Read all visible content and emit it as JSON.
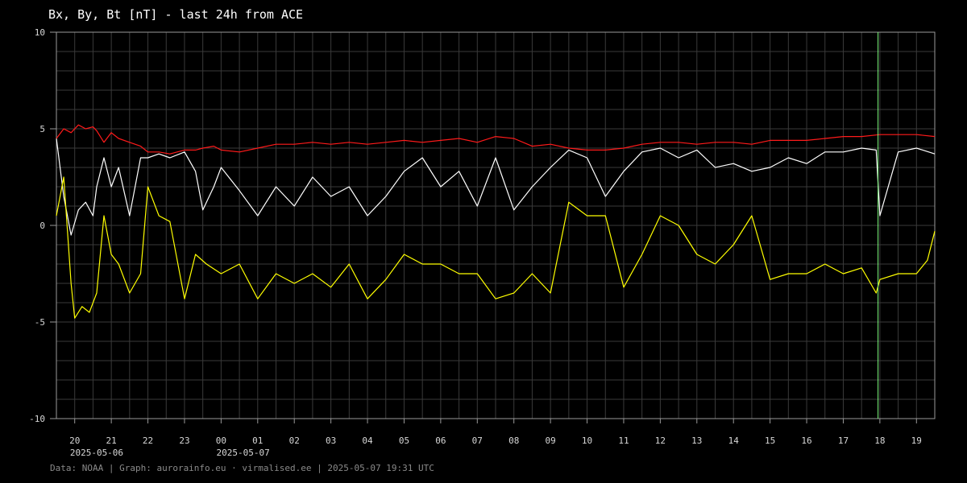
{
  "header": {
    "title": "Bx, By, Bt [nT] - last 24h from ACE"
  },
  "footer": {
    "credit": "Data: NOAA | Graph: aurorainfo.eu · virmalised.ee | 2025-05-07 19:31 UTC"
  },
  "colors": {
    "background": "#000000",
    "grid": "#3a3a3a",
    "axis": "#9a9a9a",
    "bt": "#ff1a1a",
    "bx": "#ffffff",
    "by": "#ffff00",
    "marker": "#80ff80"
  },
  "chart_data": {
    "type": "line",
    "title": "Bx, By, Bt [nT] - last 24h from ACE",
    "xlabel": "",
    "ylabel": "",
    "ylim": [
      -10,
      10
    ],
    "grid": true,
    "x_unit": "hours (UTC)",
    "xlim": [
      19.5,
      43.5
    ],
    "y_ticks": [
      {
        "value": 10,
        "label": "10"
      },
      {
        "value": 5,
        "label": "5"
      },
      {
        "value": 0,
        "label": "0"
      },
      {
        "value": -5,
        "label": "-5"
      },
      {
        "value": -10,
        "label": "-10"
      }
    ],
    "x_ticks": [
      {
        "hour": 20,
        "label": "20"
      },
      {
        "hour": 21,
        "label": "21"
      },
      {
        "hour": 22,
        "label": "22"
      },
      {
        "hour": 23,
        "label": "23"
      },
      {
        "hour": 24,
        "label": "00"
      },
      {
        "hour": 25,
        "label": "01"
      },
      {
        "hour": 26,
        "label": "02"
      },
      {
        "hour": 27,
        "label": "03"
      },
      {
        "hour": 28,
        "label": "04"
      },
      {
        "hour": 29,
        "label": "05"
      },
      {
        "hour": 30,
        "label": "06"
      },
      {
        "hour": 31,
        "label": "07"
      },
      {
        "hour": 32,
        "label": "08"
      },
      {
        "hour": 33,
        "label": "09"
      },
      {
        "hour": 34,
        "label": "10"
      },
      {
        "hour": 35,
        "label": "11"
      },
      {
        "hour": 36,
        "label": "12"
      },
      {
        "hour": 37,
        "label": "13"
      },
      {
        "hour": 38,
        "label": "14"
      },
      {
        "hour": 39,
        "label": "15"
      },
      {
        "hour": 40,
        "label": "16"
      },
      {
        "hour": 41,
        "label": "17"
      },
      {
        "hour": 42,
        "label": "18"
      },
      {
        "hour": 43,
        "label": "19"
      }
    ],
    "date_labels": [
      {
        "hour": 20.6,
        "label": "2025-05-06"
      },
      {
        "hour": 24.6,
        "label": "2025-05-07"
      }
    ],
    "marker_hour": 41.95,
    "series": [
      {
        "key": "bt",
        "color": "#ff1a1a",
        "x": [
          19.5,
          19.7,
          19.9,
          20.1,
          20.3,
          20.5,
          20.6,
          20.8,
          21.0,
          21.2,
          21.5,
          21.8,
          22.0,
          22.3,
          22.6,
          23.0,
          23.3,
          23.5,
          23.8,
          24.0,
          24.5,
          25.0,
          25.5,
          26.0,
          26.5,
          27.0,
          27.5,
          28.0,
          28.5,
          29.0,
          29.5,
          30.0,
          30.5,
          31.0,
          31.5,
          32.0,
          32.5,
          33.0,
          33.5,
          34.0,
          34.5,
          35.0,
          35.5,
          36.0,
          36.5,
          37.0,
          37.5,
          38.0,
          38.5,
          39.0,
          39.5,
          40.0,
          40.5,
          41.0,
          41.5,
          42.0,
          42.5,
          43.0,
          43.5
        ],
        "values": [
          4.5,
          5.0,
          4.8,
          5.2,
          5.0,
          5.1,
          4.9,
          4.3,
          4.8,
          4.5,
          4.3,
          4.1,
          3.8,
          3.8,
          3.7,
          3.9,
          3.9,
          4.0,
          4.1,
          3.9,
          3.8,
          4.0,
          4.2,
          4.2,
          4.3,
          4.2,
          4.3,
          4.2,
          4.3,
          4.4,
          4.3,
          4.4,
          4.5,
          4.3,
          4.6,
          4.5,
          4.1,
          4.2,
          4.0,
          3.9,
          3.9,
          4.0,
          4.2,
          4.3,
          4.3,
          4.2,
          4.3,
          4.3,
          4.2,
          4.4,
          4.4,
          4.4,
          4.5,
          4.6,
          4.6,
          4.7,
          4.7,
          4.7,
          4.6
        ]
      },
      {
        "key": "bx",
        "color": "#ffffff",
        "x": [
          19.5,
          19.7,
          19.9,
          20.1,
          20.3,
          20.5,
          20.6,
          20.8,
          21.0,
          21.2,
          21.5,
          21.8,
          22.0,
          22.3,
          22.6,
          23.0,
          23.3,
          23.5,
          23.8,
          24.0,
          24.5,
          25.0,
          25.5,
          26.0,
          26.5,
          27.0,
          27.5,
          28.0,
          28.5,
          29.0,
          29.5,
          30.0,
          30.5,
          31.0,
          31.5,
          32.0,
          32.5,
          33.0,
          33.5,
          34.0,
          34.5,
          35.0,
          35.5,
          36.0,
          36.5,
          37.0,
          37.5,
          38.0,
          38.5,
          39.0,
          39.5,
          40.0,
          40.5,
          41.0,
          41.5,
          41.9,
          42.0,
          42.5,
          43.0,
          43.5
        ],
        "values": [
          4.5,
          1.5,
          -0.5,
          0.8,
          1.2,
          0.5,
          2.0,
          3.5,
          2.0,
          3.0,
          0.5,
          3.5,
          3.5,
          3.7,
          3.5,
          3.8,
          2.8,
          0.8,
          2.0,
          3.0,
          1.8,
          0.5,
          2.0,
          1.0,
          2.5,
          1.5,
          2.0,
          0.5,
          1.5,
          2.8,
          3.5,
          2.0,
          2.8,
          1.0,
          3.5,
          0.8,
          2.0,
          3.0,
          3.9,
          3.5,
          1.5,
          2.8,
          3.8,
          4.0,
          3.5,
          3.9,
          3.0,
          3.2,
          2.8,
          3.0,
          3.5,
          3.2,
          3.8,
          3.8,
          4.0,
          3.9,
          0.5,
          3.8,
          4.0,
          3.7
        ]
      },
      {
        "key": "by",
        "color": "#ffff00",
        "x": [
          19.5,
          19.7,
          19.9,
          20.0,
          20.2,
          20.4,
          20.6,
          20.8,
          21.0,
          21.2,
          21.5,
          21.8,
          22.0,
          22.3,
          22.6,
          23.0,
          23.3,
          23.6,
          24.0,
          24.5,
          25.0,
          25.5,
          26.0,
          26.5,
          27.0,
          27.5,
          28.0,
          28.5,
          29.0,
          29.5,
          30.0,
          30.5,
          31.0,
          31.5,
          32.0,
          32.5,
          33.0,
          33.5,
          34.0,
          34.5,
          35.0,
          35.5,
          36.0,
          36.5,
          37.0,
          37.5,
          38.0,
          38.5,
          39.0,
          39.5,
          40.0,
          40.5,
          41.0,
          41.5,
          41.9,
          42.0,
          42.5,
          43.0,
          43.3,
          43.5
        ],
        "values": [
          0.5,
          2.5,
          -3.0,
          -4.8,
          -4.2,
          -4.5,
          -3.5,
          0.5,
          -1.5,
          -2.0,
          -3.5,
          -2.5,
          2.0,
          0.5,
          0.2,
          -3.8,
          -1.5,
          -2.0,
          -2.5,
          -2.0,
          -3.8,
          -2.5,
          -3.0,
          -2.5,
          -3.2,
          -2.0,
          -3.8,
          -2.8,
          -1.5,
          -2.0,
          -2.0,
          -2.5,
          -2.5,
          -3.8,
          -3.5,
          -2.5,
          -3.5,
          1.2,
          0.5,
          0.5,
          -3.2,
          -1.5,
          0.5,
          0.0,
          -1.5,
          -2.0,
          -1.0,
          0.5,
          -2.8,
          -2.5,
          -2.5,
          -2.0,
          -2.5,
          -2.2,
          -3.5,
          -2.8,
          -2.5,
          -2.5,
          -1.8,
          -0.3
        ]
      }
    ]
  }
}
